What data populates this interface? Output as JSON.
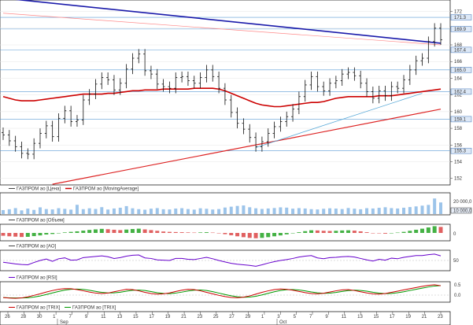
{
  "panels": {
    "price": {
      "legend": [
        "ГАЗПРОМ ао [Цена]",
        "ГАЗПРОМ ао [MovingAverage]"
      ]
    },
    "volume": {
      "legend": [
        "ГАЗПРОМ ао [Объем]"
      ],
      "top_label": "20 000,0",
      "badge": "10 000,0"
    },
    "ao": {
      "legend": [
        "ГАЗПРОМ ао [AO]"
      ],
      "zero": "0"
    },
    "rsi": {
      "legend": [
        "ГАЗПРОМ ао [RSI]"
      ],
      "mid": "50"
    },
    "trix": {
      "legend": [
        "ГАЗПРОМ ао [TRIX]",
        "ГАЗПРОМ ао [TRIX]"
      ],
      "top": "0.5",
      "zero": "0.0"
    }
  },
  "x_axis": {
    "days": [
      "26",
      "28",
      "30",
      "1",
      "7",
      "9",
      "11",
      "13",
      "15",
      "17",
      "19",
      "21",
      "23",
      "25",
      "27",
      "29",
      "1",
      "3",
      "5",
      "7",
      "9",
      "11",
      "13",
      "15",
      "17",
      "19",
      "21",
      "23"
    ],
    "months": [
      "Sep",
      "Oct"
    ]
  },
  "chart_data": [
    {
      "type": "candlestick",
      "title": "",
      "series": [
        {
          "name": "ГАЗПРОМ ао [Цена]"
        },
        {
          "name": "ГАЗПРОМ ао [MovingAverage]"
        }
      ],
      "yticks": [
        172,
        170,
        168,
        166,
        164,
        162,
        160,
        158,
        156,
        154,
        152
      ],
      "ylim": [
        151.5,
        173
      ],
      "close_approx": [
        157.2,
        156.5,
        155.8,
        155.0,
        154.9,
        156.2,
        157.4,
        158.3,
        157.0,
        159.2,
        160.1,
        158.8,
        159.0,
        161.4,
        162.1,
        163.3,
        164.1,
        163.8,
        162.6,
        163.4,
        165.1,
        166.4,
        166.9,
        164.9,
        164.5,
        163.3,
        163.0,
        162.8,
        164.1,
        164.2,
        163.7,
        163.4,
        164.1,
        165.0,
        164.2,
        162.8,
        161.4,
        159.9,
        158.6,
        157.9,
        156.9,
        155.8,
        156.4,
        157.4,
        158.2,
        158.8,
        159.4,
        160.3,
        161.8,
        163.2,
        164.2,
        163.0,
        162.5,
        163.4,
        163.7,
        164.5,
        164.7,
        164.3,
        163.4,
        162.4,
        161.6,
        162.5,
        161.9,
        163.0,
        162.8,
        163.8,
        165.0,
        166.1,
        166.4,
        168.4,
        170.0,
        168.6
      ],
      "ma_approx": [
        161.8,
        161.6,
        161.4,
        161.3,
        161.3,
        161.3,
        161.4,
        161.5,
        161.6,
        161.7,
        161.8,
        161.9,
        162.0,
        162.1,
        162.1,
        162.1,
        162.1,
        162.2,
        162.2,
        162.3,
        162.4,
        162.5,
        162.5,
        162.6,
        162.6,
        162.6,
        162.7,
        162.7,
        162.7,
        162.7,
        162.7,
        162.8,
        162.8,
        162.8,
        162.8,
        162.7,
        162.5,
        162.2,
        161.9,
        161.6,
        161.3,
        161.0,
        160.8,
        160.7,
        160.6,
        160.6,
        160.7,
        160.8,
        160.9,
        161.0,
        161.1,
        161.1,
        161.2,
        161.4,
        161.6,
        161.7,
        161.8,
        161.8,
        161.8,
        161.8,
        161.8,
        161.9,
        161.9,
        161.9,
        162.0,
        162.1,
        162.2,
        162.3,
        162.4,
        162.5,
        162.6,
        162.7
      ],
      "markers": [
        "171.3",
        "169.9",
        "167.4",
        "165.0",
        "162.4",
        "159.1",
        "155.3"
      ]
    },
    {
      "type": "bar",
      "title": "",
      "series": [
        {
          "name": "ГАЗПРОМ ао [Объем]"
        }
      ],
      "ylim": [
        0,
        20000
      ],
      "values_approx": [
        4200,
        5100,
        6300,
        3900,
        5800,
        4400,
        7100,
        5300,
        4900,
        6200,
        5500,
        4700,
        9800,
        5200,
        6100,
        5400,
        7300,
        4800,
        5900,
        6700,
        8400,
        6100,
        5200,
        4600,
        5700,
        6300,
        5100,
        4900,
        5800,
        6200,
        5300,
        4700,
        6100,
        5600,
        4800,
        5300,
        6900,
        7800,
        8600,
        9100,
        7200,
        6100,
        5400,
        5900,
        6400,
        7100,
        6800,
        5700,
        6300,
        5900,
        5200,
        4900,
        5600,
        6100,
        5800,
        5300,
        6400,
        5700,
        5100,
        6200,
        5900,
        6600,
        7200,
        6300,
        5900,
        6700,
        7400,
        8100,
        8900,
        9700,
        16500,
        12300
      ]
    },
    {
      "type": "bar",
      "title": "",
      "series": [
        {
          "name": "ГАЗПРОМ ао [AO]"
        }
      ],
      "values_approx": [
        -1.6,
        -1.9,
        -2.1,
        -2.3,
        -2.2,
        -1.8,
        -1.4,
        -0.9,
        -0.6,
        -0.2,
        0.3,
        0.6,
        0.9,
        1.3,
        1.7,
        2.0,
        2.3,
        2.1,
        1.8,
        1.6,
        1.9,
        2.2,
        2.4,
        2.0,
        1.6,
        1.2,
        0.8,
        0.6,
        0.5,
        0.4,
        0.3,
        0.2,
        0.3,
        0.4,
        0.2,
        -0.2,
        -0.7,
        -1.3,
        -1.9,
        -2.4,
        -2.8,
        -3.0,
        -2.8,
        -2.4,
        -1.9,
        -1.4,
        -0.8,
        -0.2,
        0.4,
        1.0,
        1.5,
        1.4,
        1.2,
        1.1,
        1.2,
        1.4,
        1.5,
        1.3,
        0.9,
        0.4,
        0.0,
        -0.2,
        -0.4,
        -0.1,
        0.2,
        0.6,
        1.2,
        1.8,
        2.4,
        3.1,
        3.8,
        3.4
      ]
    },
    {
      "type": "line",
      "title": "",
      "series": [
        {
          "name": "ГАЗПРОМ ао [RSI]"
        }
      ],
      "ylim": [
        20,
        80
      ],
      "values_approx": [
        44,
        41,
        38,
        36,
        35,
        43,
        50,
        55,
        47,
        56,
        59,
        51,
        52,
        60,
        62,
        64,
        66,
        63,
        57,
        60,
        65,
        68,
        69,
        59,
        57,
        52,
        51,
        50,
        57,
        57,
        54,
        53,
        57,
        61,
        56,
        50,
        45,
        40,
        37,
        35,
        33,
        30,
        35,
        41,
        46,
        50,
        53,
        57,
        62,
        65,
        67,
        59,
        56,
        60,
        61,
        63,
        64,
        62,
        57,
        52,
        48,
        54,
        51,
        58,
        56,
        61,
        64,
        67,
        67,
        70,
        72,
        66
      ]
    },
    {
      "type": "line",
      "title": "",
      "series": [
        {
          "name": "ГАЗПРОМ ао [TRIX]"
        },
        {
          "name": "ГАЗПРОМ ао [TRIX]"
        }
      ],
      "ylim": [
        -0.55,
        0.6
      ],
      "values_approx": [
        -0.35,
        -0.38,
        -0.4,
        -0.37,
        -0.3,
        -0.2,
        -0.1,
        0.02,
        0.12,
        0.2,
        0.25,
        0.24,
        0.18,
        0.1,
        0.02,
        -0.05,
        -0.08,
        -0.05,
        0.04,
        0.12,
        0.2,
        0.18,
        0.1,
        0.0,
        -0.08,
        -0.12,
        -0.1,
        -0.04,
        0.06,
        0.14,
        0.2,
        0.18,
        0.1,
        0.0,
        -0.1,
        -0.2,
        -0.28,
        -0.34,
        -0.36,
        -0.32,
        -0.24,
        -0.12,
        0.0,
        0.1,
        0.18,
        0.22,
        0.2,
        0.14,
        0.06,
        -0.02,
        -0.08,
        -0.1,
        -0.06,
        0.02,
        0.1,
        0.16,
        0.18,
        0.12,
        0.04,
        -0.04,
        -0.1,
        -0.12,
        -0.08,
        0.0,
        0.08,
        0.16,
        0.24,
        0.32,
        0.4,
        0.46,
        0.5,
        0.44
      ]
    }
  ]
}
